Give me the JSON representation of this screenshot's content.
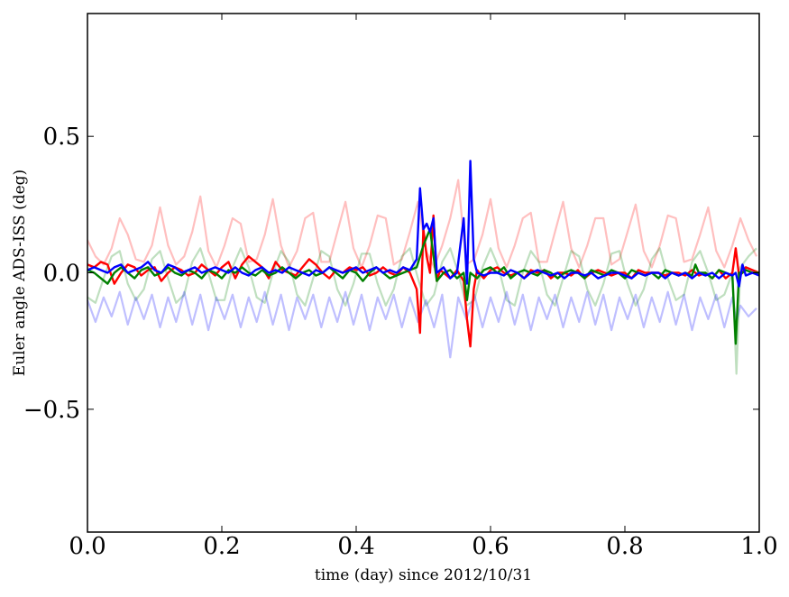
{
  "chart_data": {
    "type": "line",
    "title": "",
    "xlabel": "time (day) since 2012/10/31",
    "ylabel": "Euler angle ADS-ISS (deg)",
    "xlim": [
      0.0,
      1.0
    ],
    "ylim": [
      -0.95,
      0.95
    ],
    "xticks": [
      0.0,
      0.2,
      0.4,
      0.6,
      0.8,
      1.0
    ],
    "xtick_labels": [
      "0.0",
      "0.2",
      "0.4",
      "0.6",
      "0.8",
      "1.0"
    ],
    "yticks": [
      -0.5,
      0.0,
      0.5
    ],
    "ytick_labels": [
      "−0.5",
      "0.0",
      "0.5"
    ],
    "grid": false,
    "legend": "none",
    "series": [
      {
        "color": "#ff0000",
        "opacity": 0.25,
        "x": [
          0.0,
          0.012,
          0.024,
          0.036,
          0.048,
          0.06,
          0.072,
          0.084,
          0.096,
          0.108,
          0.12,
          0.132,
          0.144,
          0.156,
          0.168,
          0.18,
          0.192,
          0.204,
          0.216,
          0.228,
          0.24,
          0.252,
          0.264,
          0.276,
          0.288,
          0.3,
          0.312,
          0.324,
          0.336,
          0.348,
          0.36,
          0.372,
          0.384,
          0.396,
          0.408,
          0.42,
          0.432,
          0.444,
          0.456,
          0.468,
          0.48,
          0.492,
          0.504,
          0.516,
          0.528,
          0.54,
          0.552,
          0.564,
          0.576,
          0.588,
          0.6,
          0.612,
          0.624,
          0.636,
          0.648,
          0.66,
          0.672,
          0.684,
          0.696,
          0.708,
          0.72,
          0.732,
          0.744,
          0.756,
          0.768,
          0.78,
          0.792,
          0.804,
          0.816,
          0.828,
          0.84,
          0.852,
          0.864,
          0.876,
          0.888,
          0.9,
          0.912,
          0.924,
          0.936,
          0.948,
          0.96,
          0.972,
          0.984,
          0.996
        ],
        "y": [
          0.12,
          0.06,
          0.03,
          0.09,
          0.2,
          0.14,
          0.05,
          0.04,
          0.1,
          0.24,
          0.1,
          0.03,
          0.06,
          0.15,
          0.28,
          0.08,
          0.02,
          0.1,
          0.2,
          0.18,
          0.04,
          0.05,
          0.14,
          0.27,
          0.1,
          0.02,
          0.08,
          0.2,
          0.22,
          0.04,
          0.04,
          0.15,
          0.26,
          0.09,
          0.02,
          0.1,
          0.21,
          0.2,
          0.03,
          0.05,
          0.15,
          0.26,
          0.08,
          0.02,
          0.1,
          0.2,
          0.34,
          0.03,
          0.05,
          0.14,
          0.27,
          0.09,
          0.02,
          0.1,
          0.2,
          0.22,
          0.04,
          0.04,
          0.15,
          0.26,
          0.09,
          0.02,
          0.1,
          0.2,
          0.2,
          0.03,
          0.05,
          0.15,
          0.25,
          0.08,
          0.02,
          0.1,
          0.21,
          0.2,
          0.04,
          0.05,
          0.14,
          0.24,
          0.08,
          0.02,
          0.1,
          0.2,
          0.12,
          0.06
        ]
      },
      {
        "color": "#008000",
        "opacity": 0.25,
        "x": [
          0.0,
          0.012,
          0.024,
          0.036,
          0.048,
          0.06,
          0.072,
          0.084,
          0.096,
          0.108,
          0.12,
          0.132,
          0.144,
          0.156,
          0.168,
          0.18,
          0.192,
          0.204,
          0.216,
          0.228,
          0.24,
          0.252,
          0.264,
          0.276,
          0.288,
          0.3,
          0.312,
          0.324,
          0.336,
          0.348,
          0.36,
          0.372,
          0.384,
          0.396,
          0.408,
          0.42,
          0.432,
          0.444,
          0.456,
          0.468,
          0.48,
          0.492,
          0.504,
          0.516,
          0.528,
          0.54,
          0.552,
          0.564,
          0.576,
          0.588,
          0.6,
          0.612,
          0.624,
          0.636,
          0.648,
          0.66,
          0.672,
          0.684,
          0.696,
          0.708,
          0.72,
          0.732,
          0.744,
          0.756,
          0.768,
          0.78,
          0.792,
          0.804,
          0.816,
          0.828,
          0.84,
          0.852,
          0.864,
          0.876,
          0.888,
          0.9,
          0.912,
          0.924,
          0.936,
          0.948,
          0.96,
          0.966,
          0.972,
          0.984,
          0.996
        ],
        "y": [
          -0.09,
          -0.11,
          -0.02,
          0.06,
          0.08,
          -0.04,
          -0.1,
          -0.06,
          0.05,
          0.08,
          -0.02,
          -0.11,
          -0.08,
          0.04,
          0.09,
          0.0,
          -0.1,
          -0.1,
          0.02,
          0.09,
          0.02,
          -0.09,
          -0.11,
          0.0,
          0.08,
          0.04,
          -0.08,
          -0.12,
          -0.02,
          0.08,
          0.06,
          -0.06,
          -0.12,
          -0.04,
          0.07,
          0.07,
          -0.04,
          -0.12,
          -0.06,
          0.06,
          0.09,
          -0.02,
          -0.12,
          -0.08,
          0.04,
          0.09,
          0.0,
          -0.12,
          -0.1,
          0.02,
          0.09,
          0.02,
          -0.1,
          -0.12,
          0.0,
          0.08,
          0.04,
          -0.08,
          -0.12,
          -0.02,
          0.08,
          0.06,
          -0.06,
          -0.12,
          -0.04,
          0.07,
          0.08,
          -0.04,
          -0.12,
          -0.06,
          0.05,
          0.09,
          -0.02,
          -0.1,
          -0.08,
          0.04,
          0.08,
          0.0,
          -0.1,
          -0.08,
          0.0,
          -0.37,
          0.02,
          0.06,
          0.09
        ]
      },
      {
        "color": "#0000ff",
        "opacity": 0.25,
        "x": [
          0.0,
          0.012,
          0.024,
          0.036,
          0.048,
          0.06,
          0.072,
          0.084,
          0.096,
          0.108,
          0.12,
          0.132,
          0.144,
          0.156,
          0.168,
          0.18,
          0.192,
          0.204,
          0.216,
          0.228,
          0.24,
          0.252,
          0.264,
          0.276,
          0.288,
          0.3,
          0.312,
          0.324,
          0.336,
          0.348,
          0.36,
          0.372,
          0.384,
          0.396,
          0.408,
          0.42,
          0.432,
          0.444,
          0.456,
          0.468,
          0.48,
          0.492,
          0.504,
          0.516,
          0.528,
          0.54,
          0.552,
          0.564,
          0.576,
          0.588,
          0.6,
          0.612,
          0.624,
          0.636,
          0.648,
          0.66,
          0.672,
          0.684,
          0.696,
          0.708,
          0.72,
          0.732,
          0.744,
          0.756,
          0.768,
          0.78,
          0.792,
          0.804,
          0.816,
          0.828,
          0.84,
          0.852,
          0.864,
          0.876,
          0.888,
          0.9,
          0.912,
          0.924,
          0.936,
          0.948,
          0.96,
          0.966,
          0.972,
          0.984,
          0.996
        ],
        "y": [
          -0.1,
          -0.18,
          -0.09,
          -0.16,
          -0.07,
          -0.19,
          -0.09,
          -0.17,
          -0.08,
          -0.2,
          -0.09,
          -0.18,
          -0.07,
          -0.19,
          -0.08,
          -0.21,
          -0.09,
          -0.17,
          -0.08,
          -0.2,
          -0.09,
          -0.18,
          -0.07,
          -0.19,
          -0.08,
          -0.21,
          -0.09,
          -0.17,
          -0.08,
          -0.2,
          -0.09,
          -0.18,
          -0.07,
          -0.19,
          -0.08,
          -0.21,
          -0.09,
          -0.17,
          -0.08,
          -0.2,
          -0.09,
          -0.18,
          -0.1,
          -0.2,
          -0.08,
          -0.31,
          -0.09,
          -0.17,
          -0.08,
          -0.2,
          -0.09,
          -0.18,
          -0.07,
          -0.19,
          -0.08,
          -0.21,
          -0.09,
          -0.17,
          -0.08,
          -0.2,
          -0.09,
          -0.18,
          -0.07,
          -0.19,
          -0.08,
          -0.21,
          -0.09,
          -0.17,
          -0.08,
          -0.2,
          -0.09,
          -0.18,
          -0.07,
          -0.19,
          -0.08,
          -0.21,
          -0.09,
          -0.17,
          -0.08,
          -0.2,
          -0.09,
          -0.18,
          -0.12,
          -0.16,
          -0.13
        ]
      },
      {
        "color": "#ff0000",
        "opacity": 1,
        "x": [
          0.0,
          0.01,
          0.02,
          0.03,
          0.04,
          0.05,
          0.06,
          0.07,
          0.08,
          0.09,
          0.1,
          0.11,
          0.12,
          0.13,
          0.14,
          0.15,
          0.16,
          0.17,
          0.18,
          0.19,
          0.2,
          0.21,
          0.22,
          0.23,
          0.24,
          0.25,
          0.26,
          0.27,
          0.28,
          0.29,
          0.3,
          0.31,
          0.32,
          0.33,
          0.34,
          0.35,
          0.36,
          0.37,
          0.38,
          0.39,
          0.4,
          0.41,
          0.42,
          0.43,
          0.44,
          0.45,
          0.46,
          0.47,
          0.48,
          0.49,
          0.495,
          0.5,
          0.505,
          0.51,
          0.515,
          0.52,
          0.525,
          0.53,
          0.54,
          0.55,
          0.56,
          0.565,
          0.57,
          0.575,
          0.58,
          0.59,
          0.6,
          0.61,
          0.62,
          0.63,
          0.64,
          0.65,
          0.66,
          0.67,
          0.68,
          0.69,
          0.7,
          0.71,
          0.72,
          0.73,
          0.74,
          0.75,
          0.76,
          0.77,
          0.78,
          0.79,
          0.8,
          0.81,
          0.82,
          0.83,
          0.84,
          0.85,
          0.86,
          0.87,
          0.88,
          0.89,
          0.9,
          0.91,
          0.92,
          0.93,
          0.94,
          0.95,
          0.96,
          0.965,
          0.97,
          0.975,
          0.98,
          0.99,
          1.0
        ],
        "y": [
          0.03,
          0.02,
          0.04,
          0.03,
          -0.04,
          0.0,
          0.03,
          0.02,
          -0.01,
          0.01,
          0.02,
          -0.03,
          0.0,
          0.02,
          0.01,
          -0.01,
          0.0,
          0.03,
          0.01,
          -0.01,
          0.02,
          0.04,
          -0.02,
          0.03,
          0.06,
          0.04,
          0.02,
          -0.02,
          0.04,
          0.01,
          0.0,
          -0.01,
          0.02,
          0.05,
          0.03,
          0.0,
          -0.02,
          0.01,
          0.0,
          0.02,
          0.01,
          0.02,
          -0.01,
          0.0,
          0.02,
          0.0,
          -0.01,
          0.02,
          0.0,
          -0.06,
          -0.22,
          0.16,
          0.06,
          0.0,
          0.21,
          -0.03,
          0.01,
          0.0,
          -0.02,
          0.01,
          -0.03,
          -0.17,
          -0.27,
          -0.06,
          0.01,
          -0.02,
          0.01,
          0.02,
          0.0,
          -0.01,
          0.0,
          -0.02,
          0.01,
          0.0,
          0.01,
          -0.02,
          0.0,
          0.0,
          -0.01,
          0.01,
          -0.02,
          0.0,
          0.01,
          0.0,
          -0.01,
          0.0,
          0.0,
          -0.02,
          0.01,
          0.0,
          0.0,
          0.0,
          -0.01,
          0.0,
          0.0,
          -0.01,
          0.01,
          -0.01,
          0.0,
          -0.02,
          0.01,
          -0.02,
          0.0,
          0.09,
          -0.01,
          0.0,
          0.02,
          0.01,
          0.0
        ]
      },
      {
        "color": "#008000",
        "opacity": 1,
        "x": [
          0.0,
          0.01,
          0.02,
          0.03,
          0.04,
          0.05,
          0.06,
          0.07,
          0.08,
          0.09,
          0.1,
          0.11,
          0.12,
          0.13,
          0.14,
          0.15,
          0.16,
          0.17,
          0.18,
          0.19,
          0.2,
          0.21,
          0.22,
          0.23,
          0.24,
          0.25,
          0.26,
          0.27,
          0.28,
          0.29,
          0.3,
          0.31,
          0.32,
          0.33,
          0.34,
          0.35,
          0.36,
          0.37,
          0.38,
          0.39,
          0.4,
          0.41,
          0.42,
          0.43,
          0.44,
          0.45,
          0.46,
          0.47,
          0.48,
          0.49,
          0.5,
          0.51,
          0.52,
          0.53,
          0.54,
          0.55,
          0.56,
          0.565,
          0.57,
          0.58,
          0.59,
          0.6,
          0.61,
          0.62,
          0.63,
          0.64,
          0.65,
          0.66,
          0.67,
          0.68,
          0.69,
          0.7,
          0.71,
          0.72,
          0.73,
          0.74,
          0.75,
          0.76,
          0.77,
          0.78,
          0.79,
          0.8,
          0.81,
          0.82,
          0.83,
          0.84,
          0.85,
          0.86,
          0.87,
          0.88,
          0.89,
          0.9,
          0.905,
          0.91,
          0.92,
          0.93,
          0.94,
          0.95,
          0.96,
          0.965,
          0.97,
          0.975,
          0.98,
          0.99,
          1.0
        ],
        "y": [
          0.01,
          0.0,
          -0.02,
          -0.04,
          0.0,
          0.02,
          0.0,
          -0.02,
          0.01,
          0.02,
          -0.01,
          0.0,
          0.02,
          0.0,
          -0.01,
          0.01,
          0.0,
          -0.02,
          0.01,
          0.0,
          -0.02,
          0.01,
          0.0,
          0.02,
          0.0,
          -0.01,
          0.01,
          -0.01,
          0.0,
          0.02,
          0.0,
          -0.02,
          0.0,
          0.01,
          -0.01,
          0.0,
          0.02,
          0.0,
          -0.02,
          0.01,
          0.0,
          -0.03,
          0.0,
          0.02,
          0.0,
          -0.02,
          -0.01,
          0.0,
          0.01,
          0.02,
          0.1,
          0.16,
          -0.03,
          0.0,
          0.01,
          -0.02,
          0.0,
          -0.1,
          0.0,
          -0.02,
          0.01,
          0.02,
          0.0,
          0.02,
          -0.02,
          0.0,
          0.01,
          0.0,
          -0.01,
          0.01,
          0.0,
          -0.02,
          0.0,
          0.01,
          0.0,
          -0.02,
          0.01,
          0.0,
          -0.01,
          0.01,
          0.0,
          -0.02,
          0.01,
          0.0,
          -0.01,
          0.0,
          -0.02,
          0.01,
          0.0,
          -0.01,
          0.0,
          -0.01,
          0.03,
          0.0,
          0.0,
          -0.02,
          0.01,
          0.0,
          -0.01,
          -0.26,
          0.0,
          0.0,
          0.01,
          0.0,
          0.0
        ]
      },
      {
        "color": "#0000ff",
        "opacity": 1,
        "x": [
          0.0,
          0.01,
          0.02,
          0.03,
          0.04,
          0.05,
          0.06,
          0.07,
          0.08,
          0.09,
          0.1,
          0.11,
          0.12,
          0.13,
          0.14,
          0.15,
          0.16,
          0.17,
          0.18,
          0.19,
          0.2,
          0.21,
          0.22,
          0.23,
          0.24,
          0.25,
          0.26,
          0.27,
          0.28,
          0.29,
          0.3,
          0.31,
          0.32,
          0.33,
          0.34,
          0.35,
          0.36,
          0.37,
          0.38,
          0.39,
          0.4,
          0.41,
          0.42,
          0.43,
          0.44,
          0.45,
          0.46,
          0.47,
          0.48,
          0.49,
          0.495,
          0.5,
          0.505,
          0.51,
          0.515,
          0.52,
          0.53,
          0.54,
          0.55,
          0.56,
          0.565,
          0.57,
          0.575,
          0.58,
          0.59,
          0.6,
          0.61,
          0.62,
          0.63,
          0.64,
          0.65,
          0.66,
          0.67,
          0.68,
          0.69,
          0.7,
          0.71,
          0.72,
          0.73,
          0.74,
          0.75,
          0.76,
          0.77,
          0.78,
          0.79,
          0.8,
          0.81,
          0.82,
          0.83,
          0.84,
          0.85,
          0.86,
          0.87,
          0.88,
          0.89,
          0.9,
          0.91,
          0.92,
          0.93,
          0.94,
          0.95,
          0.96,
          0.965,
          0.97,
          0.975,
          0.98,
          0.99,
          1.0
        ],
        "y": [
          0.01,
          0.02,
          0.01,
          0.0,
          0.02,
          0.03,
          0.0,
          0.01,
          0.02,
          0.04,
          0.01,
          0.0,
          0.03,
          0.02,
          0.0,
          0.01,
          0.02,
          0.0,
          0.01,
          0.02,
          0.01,
          0.0,
          0.02,
          0.0,
          -0.01,
          0.01,
          0.02,
          0.0,
          0.01,
          0.0,
          0.02,
          0.01,
          0.0,
          -0.01,
          0.01,
          0.0,
          0.02,
          0.01,
          0.0,
          0.01,
          0.02,
          0.0,
          0.01,
          0.02,
          0.0,
          0.01,
          0.0,
          0.02,
          0.01,
          0.05,
          0.31,
          0.16,
          0.18,
          0.15,
          0.2,
          0.0,
          0.02,
          -0.02,
          0.0,
          0.2,
          -0.04,
          0.41,
          0.05,
          0.0,
          -0.01,
          0.0,
          0.0,
          -0.01,
          0.01,
          0.0,
          -0.02,
          0.0,
          0.01,
          0.0,
          -0.01,
          0.0,
          -0.02,
          0.0,
          0.0,
          -0.01,
          0.0,
          -0.02,
          -0.01,
          0.0,
          0.0,
          -0.01,
          -0.02,
          0.0,
          -0.01,
          0.0,
          0.0,
          -0.02,
          0.0,
          -0.01,
          0.0,
          -0.02,
          0.0,
          -0.01,
          0.0,
          -0.02,
          0.0,
          -0.01,
          0.0,
          -0.05,
          0.03,
          -0.01,
          0.0,
          -0.01
        ]
      }
    ]
  }
}
